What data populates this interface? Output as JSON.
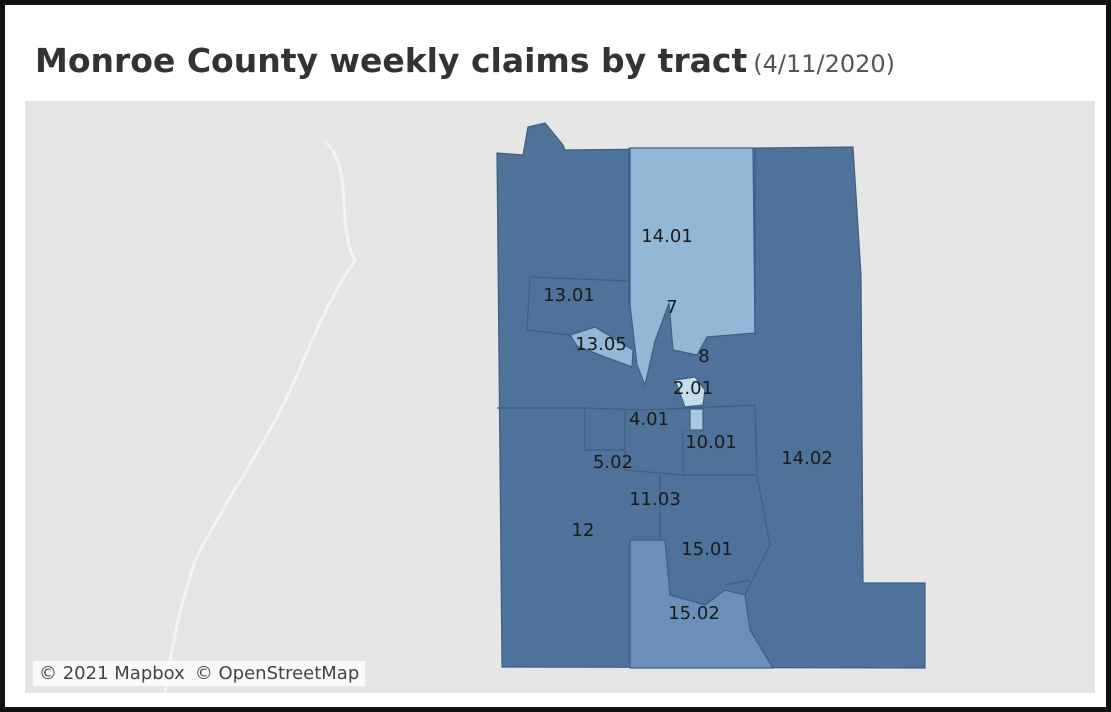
{
  "header": {
    "title": "Monroe County weekly claims by tract",
    "subtitle": "(4/11/2020)"
  },
  "tracts": [
    "14.01",
    "13.01",
    "7",
    "13.05",
    "8",
    "2.01",
    "4.01",
    "10.01",
    "14.02",
    "5.02",
    "11.03",
    "12",
    "15.01",
    "15.02"
  ],
  "attribution": [
    "© 2021 Mapbox",
    "© OpenStreetMap"
  ]
}
